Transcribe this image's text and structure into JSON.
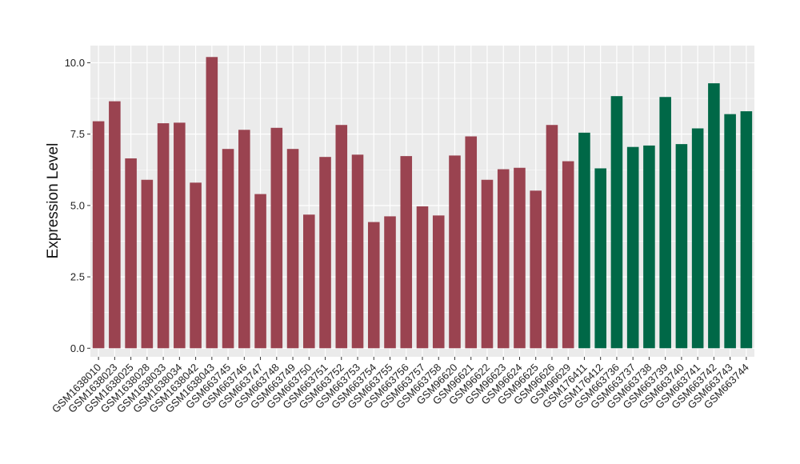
{
  "chart_data": {
    "type": "bar",
    "title": "",
    "xlabel": "",
    "ylabel": "Expression Level",
    "ylim": [
      -0.3,
      10.6
    ],
    "yticks": [
      0.0,
      2.5,
      5.0,
      7.5,
      10.0
    ],
    "ytick_labels": [
      "0.0",
      "2.5",
      "5.0",
      "7.5",
      "10.0"
    ],
    "grid": true,
    "legend": "none",
    "colors": {
      "group1": "#9a4350",
      "group2": "#006847",
      "panel": "#ebebeb",
      "grid": "#ffffff"
    },
    "categories": [
      "GSM1638010",
      "GSM1638023",
      "GSM1638025",
      "GSM1638028",
      "GSM1638033",
      "GSM1638034",
      "GSM1638042",
      "GSM1638043",
      "GSM663745",
      "GSM663746",
      "GSM663747",
      "GSM663748",
      "GSM663749",
      "GSM663750",
      "GSM663751",
      "GSM663752",
      "GSM663753",
      "GSM663754",
      "GSM663755",
      "GSM663756",
      "GSM663757",
      "GSM663758",
      "GSM96620",
      "GSM96621",
      "GSM96622",
      "GSM96623",
      "GSM96624",
      "GSM96625",
      "GSM96626",
      "GSM96629",
      "GSM176411",
      "GSM176412",
      "GSM663736",
      "GSM663737",
      "GSM663738",
      "GSM663739",
      "GSM663740",
      "GSM663741",
      "GSM663742",
      "GSM663743",
      "GSM663744"
    ],
    "values": [
      7.95,
      8.65,
      6.65,
      5.9,
      7.88,
      7.9,
      5.8,
      10.2,
      6.98,
      7.65,
      5.4,
      7.72,
      6.98,
      4.68,
      6.7,
      7.82,
      6.78,
      4.42,
      4.62,
      6.73,
      4.97,
      4.65,
      6.75,
      7.42,
      5.9,
      6.27,
      6.32,
      5.52,
      7.82,
      6.55,
      7.55,
      6.3,
      8.83,
      7.05,
      7.1,
      8.8,
      7.15,
      7.7,
      9.28,
      8.2,
      8.3
    ],
    "groups": [
      0,
      0,
      0,
      0,
      0,
      0,
      0,
      0,
      0,
      0,
      0,
      0,
      0,
      0,
      0,
      0,
      0,
      0,
      0,
      0,
      0,
      0,
      0,
      0,
      0,
      0,
      0,
      0,
      0,
      0,
      1,
      1,
      1,
      1,
      1,
      1,
      1,
      1,
      1,
      1,
      1
    ]
  }
}
